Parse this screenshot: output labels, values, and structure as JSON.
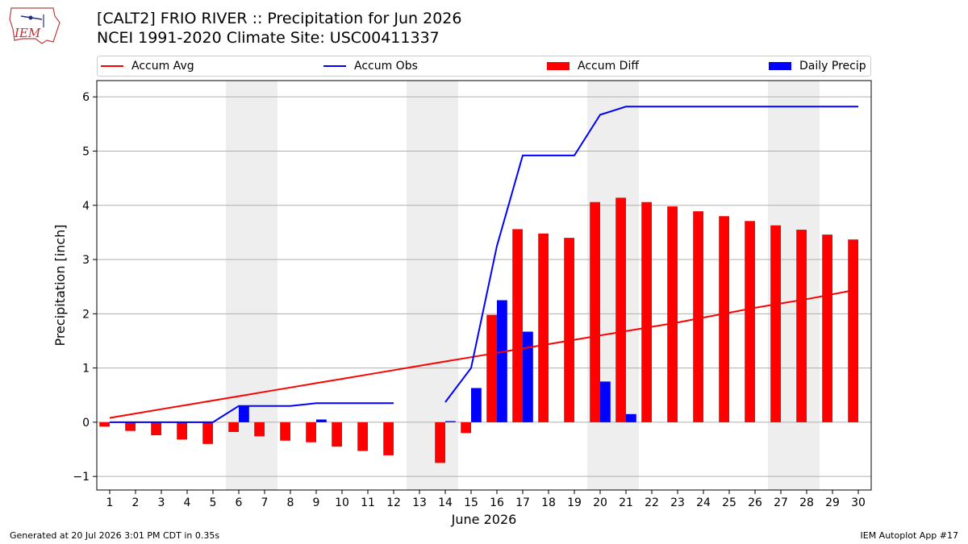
{
  "header": {
    "title_line1": "[CALT2] FRIO RIVER :: Precipitation for Jun 2026",
    "title_line2": "NCEI 1991-2020 Climate Site: USC00411337",
    "logo_text": "IEM"
  },
  "footer": {
    "generated": "Generated at 20 Jul 2026 3:01 PM CDT in 0.35s",
    "app": "IEM Autoplot App #17"
  },
  "colors": {
    "avg": "#ff0000",
    "obs": "#0000ff",
    "diff": "#ff0000",
    "daily": "#0000ff",
    "weekend_shade": "#eeeeee",
    "grid": "#b0b0b0"
  },
  "chart_data": {
    "type": "bar",
    "title": "[CALT2] FRIO RIVER :: Precipitation for Jun 2026",
    "xlabel": "June 2026",
    "ylabel": "Precipitation [inch]",
    "xlim": [
      0.5,
      30.5
    ],
    "ylim": [
      -1.25,
      6.3
    ],
    "yticks": [
      -1,
      0,
      1,
      2,
      3,
      4,
      5,
      6
    ],
    "grid": "y",
    "legend_position": "top",
    "days": [
      1,
      2,
      3,
      4,
      5,
      6,
      7,
      8,
      9,
      10,
      11,
      12,
      13,
      14,
      15,
      16,
      17,
      18,
      19,
      20,
      21,
      22,
      23,
      24,
      25,
      26,
      27,
      28,
      29,
      30
    ],
    "weekend_days": [
      6,
      7,
      13,
      14,
      20,
      21,
      27,
      28
    ],
    "series": [
      {
        "name": "Accum Avg",
        "kind": "line",
        "values": [
          0.08,
          0.16,
          0.24,
          0.32,
          0.4,
          0.48,
          0.56,
          0.64,
          0.72,
          0.8,
          0.88,
          0.96,
          1.04,
          1.12,
          1.2,
          1.28,
          1.36,
          1.44,
          1.52,
          1.6,
          1.68,
          1.76,
          1.84,
          1.93,
          2.02,
          2.11,
          2.19,
          2.27,
          2.36,
          2.45
        ]
      },
      {
        "name": "Accum Obs",
        "kind": "line",
        "values": [
          0.0,
          0.0,
          0.0,
          0.0,
          0.0,
          0.3,
          0.3,
          0.3,
          0.35,
          0.35,
          0.35,
          0.35,
          null,
          0.37,
          1.0,
          3.25,
          4.92,
          4.92,
          4.92,
          5.67,
          5.82,
          5.82,
          5.82,
          5.82,
          5.82,
          5.82,
          5.82,
          5.82,
          5.82,
          5.82
        ]
      },
      {
        "name": "Accum Diff",
        "kind": "bar",
        "values": [
          -0.08,
          -0.16,
          -0.24,
          -0.32,
          -0.4,
          -0.18,
          -0.26,
          -0.34,
          -0.37,
          -0.45,
          -0.53,
          -0.61,
          null,
          -0.75,
          -0.2,
          1.98,
          3.56,
          3.48,
          3.4,
          4.06,
          4.14,
          4.06,
          3.98,
          3.89,
          3.8,
          3.71,
          3.63,
          3.55,
          3.46,
          3.37
        ]
      },
      {
        "name": "Daily Precip",
        "kind": "bar",
        "values": [
          0,
          0,
          0,
          0,
          0,
          0.3,
          0,
          0,
          0.05,
          0,
          0,
          0,
          0,
          0.02,
          0.63,
          2.25,
          1.67,
          0,
          0,
          0.75,
          0.15,
          0,
          0,
          0,
          0,
          0,
          0,
          0,
          0,
          0
        ]
      }
    ]
  }
}
